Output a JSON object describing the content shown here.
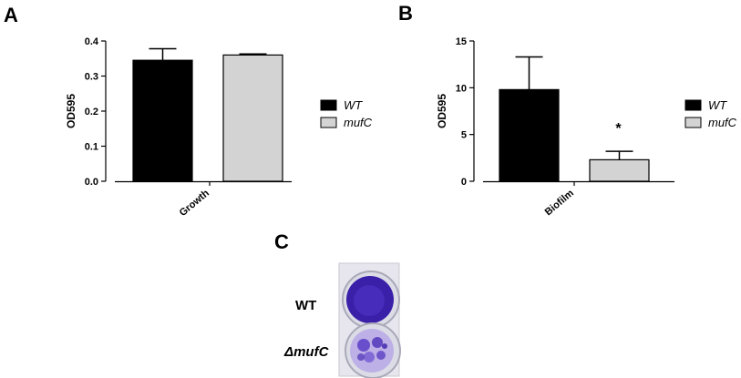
{
  "panels": {
    "a": "A",
    "b": "B",
    "c": "C"
  },
  "colors": {
    "wt": "#000000",
    "mufc": "#d3d3d3",
    "stain": "#3a1fa8",
    "tray": "#e7e6ee"
  },
  "chart_data": [
    {
      "type": "bar",
      "panel": "A",
      "ylabel": "OD595",
      "categories": [
        "Growth"
      ],
      "ylim": [
        0,
        0.4
      ],
      "yticks": [
        "0.0",
        "0.1",
        "0.2",
        "0.3",
        "0.4"
      ],
      "ytick_values": [
        0,
        0.1,
        0.2,
        0.3,
        0.4
      ],
      "legend_position": "right",
      "series": [
        {
          "name": "WT",
          "values": [
            0.345
          ],
          "error": [
            0.033
          ],
          "color": "#000000"
        },
        {
          "name": "mufC",
          "values": [
            0.36
          ],
          "error": [
            0.003
          ],
          "color": "#d3d3d3"
        }
      ],
      "annotations": []
    },
    {
      "type": "bar",
      "panel": "B",
      "ylabel": "OD595",
      "categories": [
        "Biofilm"
      ],
      "ylim": [
        0,
        15
      ],
      "yticks": [
        "0",
        "5",
        "10",
        "15"
      ],
      "ytick_values": [
        0,
        5,
        10,
        15
      ],
      "legend_position": "right",
      "series": [
        {
          "name": "WT",
          "values": [
            9.8
          ],
          "error": [
            3.5
          ],
          "color": "#000000"
        },
        {
          "name": "mufC",
          "values": [
            2.3
          ],
          "error": [
            0.9
          ],
          "color": "#d3d3d3",
          "annotation": "*"
        }
      ]
    }
  ],
  "image_c": {
    "row_labels": [
      "WT",
      "ΔmufC"
    ]
  }
}
